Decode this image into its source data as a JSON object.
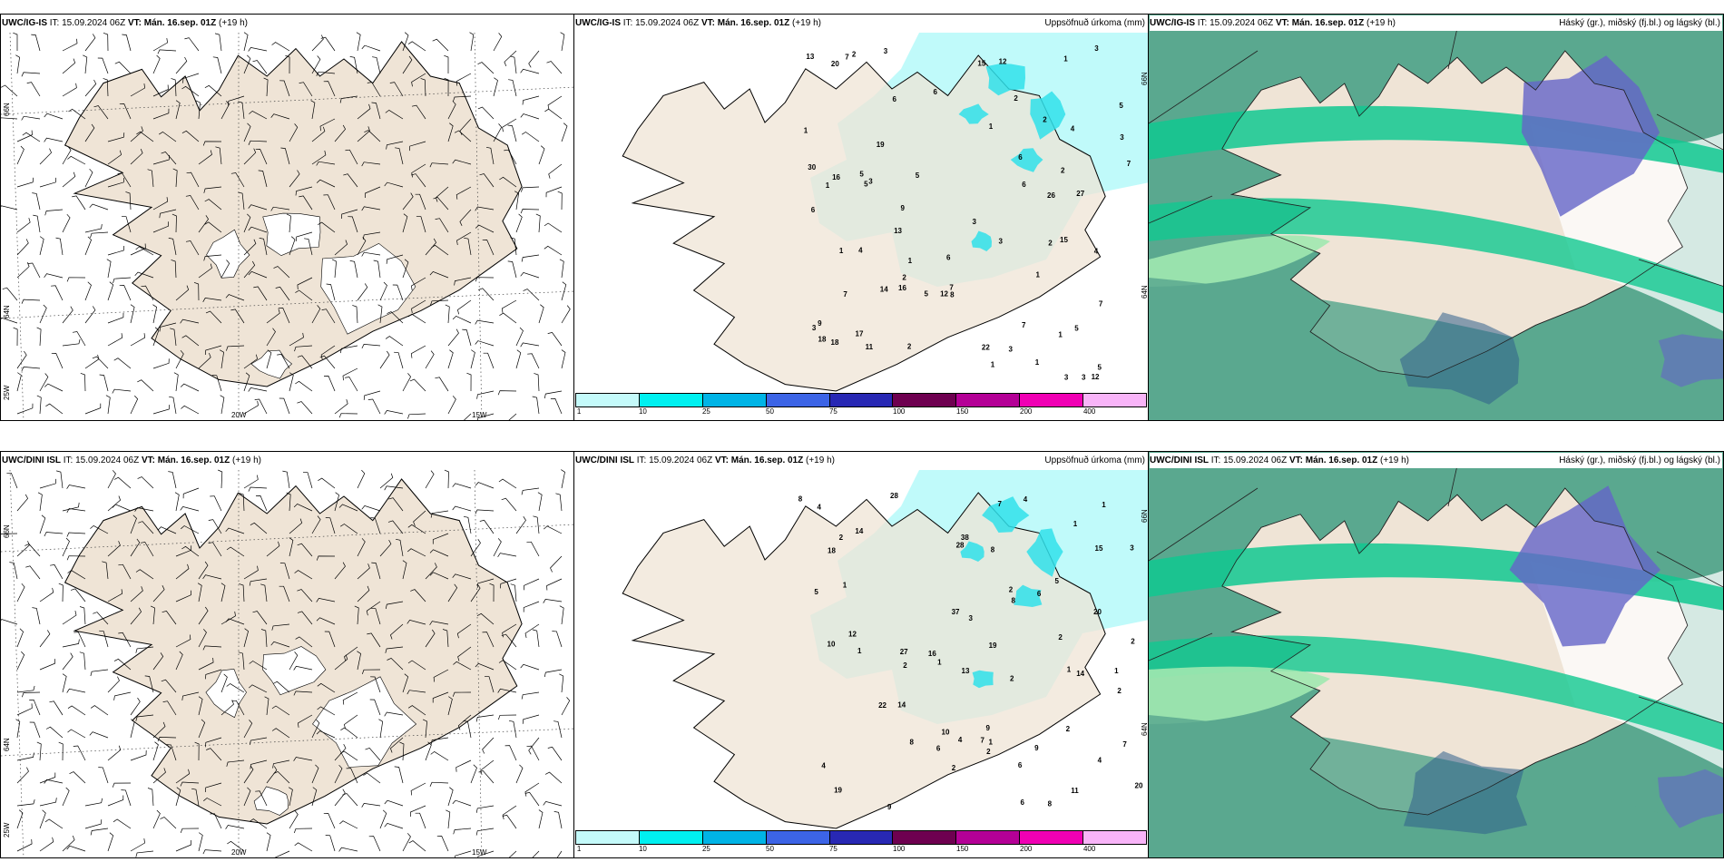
{
  "header": {
    "it_label": "IT:",
    "issue_time": "15.09.2024 06Z",
    "vt_label": "VT:",
    "valid_time": "Mán. 16.sep. 01Z",
    "lead": "(+19 h)"
  },
  "rows": [
    {
      "model": "UWC/IG-IS"
    },
    {
      "model": "UWC/DINI ISL"
    }
  ],
  "precip_title": "Uppsöfnuð úrkoma (mm)",
  "cloud_title": "Háský (gr.), miðský (fj.bl.) og lágský (bl.)",
  "axis_labels": {
    "lat_66": "66N",
    "lat_64": "64N",
    "lon_25": "25W",
    "lon_20": "20W",
    "lon_15": "15W",
    "precip_lat_66": "66N",
    "precip_lat_64": "64N"
  },
  "colorbar": {
    "ticks": [
      "1",
      "10",
      "25",
      "50",
      "75",
      "100",
      "150",
      "200",
      "400"
    ],
    "colors": [
      "#c4fafa",
      "#00f0f0",
      "#00b4e6",
      "#3c64e6",
      "#2828b4",
      "#6e0050",
      "#b40096",
      "#f000b4",
      "#f8b4f8"
    ]
  },
  "colors": {
    "land": "#efe4d6",
    "precip_light": "#c0fafa",
    "precip_mid": "#30e0ea",
    "cloud_sea": "#5aa88f",
    "cloud_low": "#10c890",
    "cloud_mid": "#a0e8b0",
    "cloud_high": "#6464c8"
  },
  "precip_values": {
    "ig_is": [
      "6",
      "5",
      "7",
      "15",
      "12",
      "6",
      "12",
      "13",
      "16",
      "26",
      "27",
      "15",
      "13",
      "3",
      "9",
      "7",
      "3",
      "7",
      "5",
      "5",
      "3",
      "3",
      "3",
      "14",
      "5",
      "6",
      "22",
      "9",
      "4",
      "3",
      "2",
      "5",
      "18",
      "7",
      "2",
      "30",
      "16",
      "2",
      "4",
      "2",
      "6",
      "5",
      "4",
      "1",
      "8",
      "18",
      "7",
      "19",
      "3",
      "2",
      "1",
      "2",
      "3",
      "1",
      "3",
      "6",
      "11",
      "20",
      "7",
      "17",
      "12",
      "6",
      "1",
      "2",
      "1",
      "1",
      "3",
      "1",
      "1",
      "1",
      "1",
      "5"
    ],
    "dini_isl": [
      "4",
      "7",
      "9",
      "7",
      "9",
      "6",
      "8",
      "20",
      "14",
      "6",
      "12",
      "27",
      "4",
      "7",
      "10",
      "19",
      "28",
      "15",
      "8",
      "28",
      "3",
      "6",
      "14",
      "4",
      "6",
      "20",
      "38",
      "2",
      "2",
      "2",
      "1",
      "2",
      "2",
      "2",
      "1",
      "8",
      "37",
      "9",
      "5",
      "16",
      "8",
      "10",
      "5",
      "1",
      "2",
      "1",
      "1",
      "4",
      "2",
      "4",
      "13",
      "11",
      "19",
      "14",
      "22",
      "1",
      "1",
      "2",
      "3",
      "1",
      "2",
      "8",
      "18"
    ]
  }
}
